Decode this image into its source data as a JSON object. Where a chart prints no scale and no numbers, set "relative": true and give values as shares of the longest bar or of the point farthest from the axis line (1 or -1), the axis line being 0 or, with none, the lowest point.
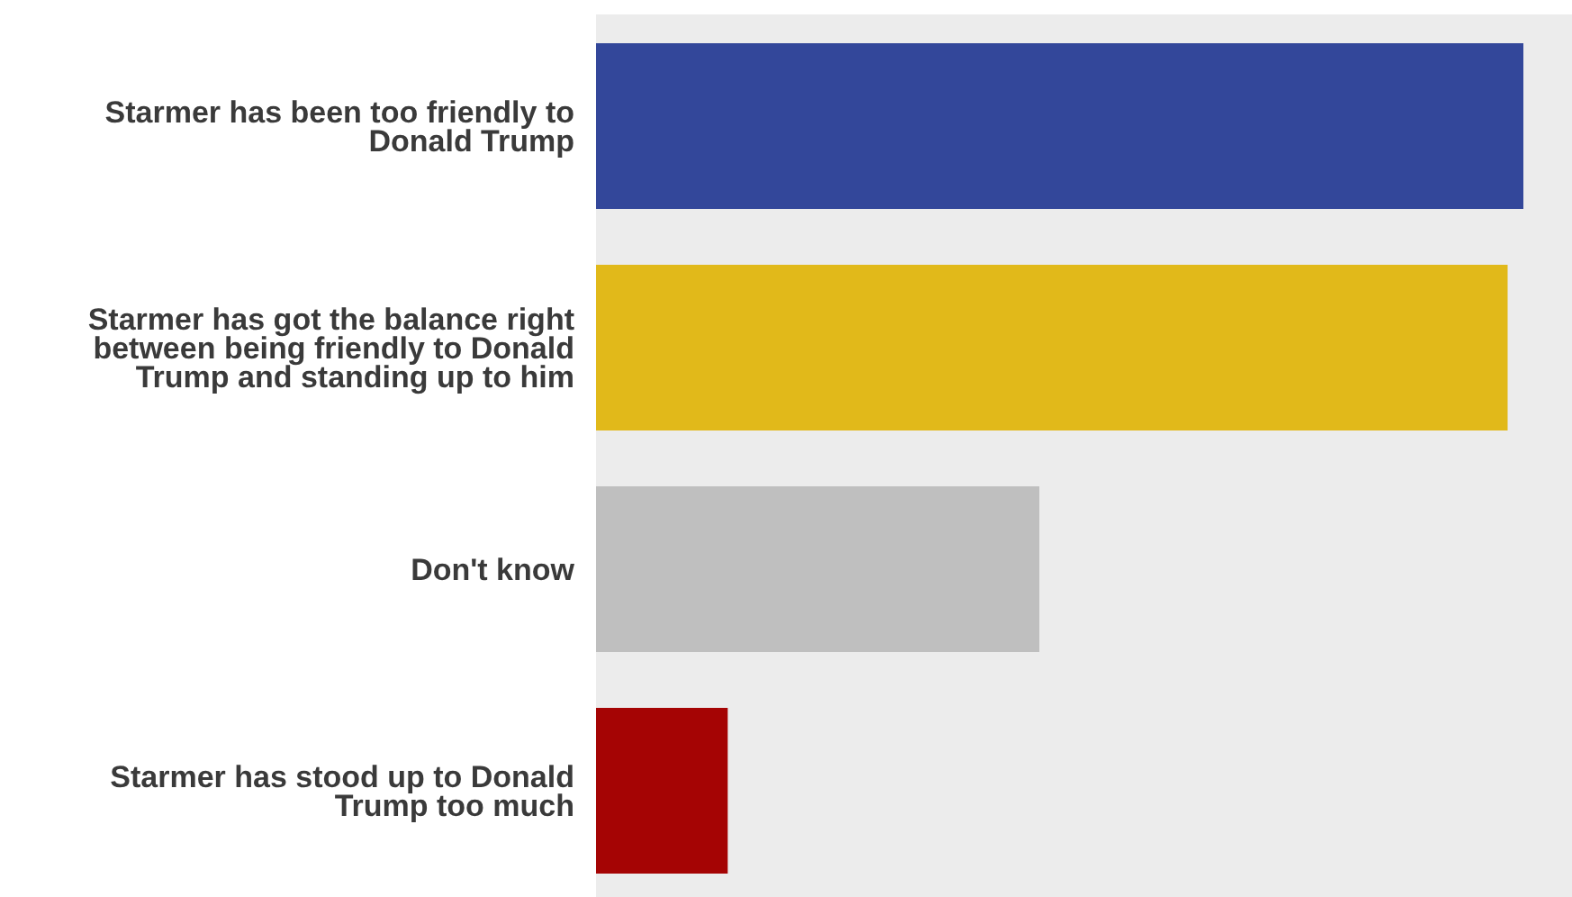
{
  "chart_data": {
    "type": "bar",
    "orientation": "horizontal",
    "relative": true,
    "categories": [
      "Starmer has been too friendly to Donald Trump",
      "Starmer has got the balance right between being friendly to Donald Trump and standing up to him",
      "Don't know",
      "Starmer has stood up to Donald Trump too much"
    ],
    "values": [
      1,
      0.983,
      0.478,
      0.142
    ],
    "colors": [
      "#33479a",
      "#e1b91a",
      "#bfbfbf",
      "#a50404"
    ]
  }
}
